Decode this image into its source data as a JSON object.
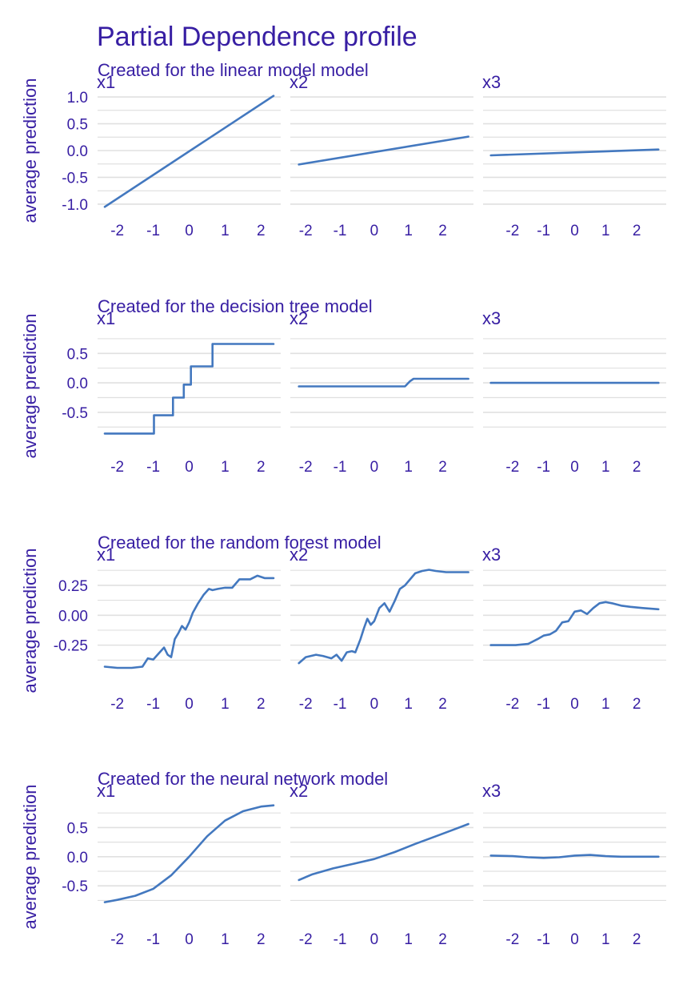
{
  "title": "Partial Dependence profile",
  "colors": {
    "text": "#371ea3",
    "line": "#4378bf",
    "grid": "#e0e0e0",
    "background": "#ffffff"
  },
  "ylabel": "average prediction",
  "chart_data": [
    {
      "type": "line",
      "subtitle": "Created for the linear model model",
      "ylim": [
        -1.12,
        1.12
      ],
      "yticks": [
        -1.0,
        -0.5,
        0.0,
        0.5,
        1.0
      ],
      "ytick_labels": [
        "-1.0",
        "-0.5",
        "0.0",
        "0.5",
        "1.0"
      ],
      "panels": [
        {
          "label": "x1",
          "xlim": [
            -2.55,
            2.55
          ],
          "xticks": [
            -2,
            -1,
            0,
            1,
            2
          ],
          "xtick_labels": [
            "-2",
            "-1",
            "0",
            "1",
            "2"
          ],
          "x": [
            -2.35,
            2.35
          ],
          "y": [
            -1.05,
            1.02
          ]
        },
        {
          "label": "x2",
          "xlim": [
            -2.45,
            2.9
          ],
          "xticks": [
            -2,
            -1,
            0,
            1,
            2
          ],
          "xtick_labels": [
            "-2",
            "-1",
            "0",
            "1",
            "2"
          ],
          "x": [
            -2.2,
            2.75
          ],
          "y": [
            -0.26,
            0.26
          ]
        },
        {
          "label": "x3",
          "xlim": [
            -2.95,
            2.95
          ],
          "xticks": [
            -2,
            -1,
            0,
            1,
            2
          ],
          "xtick_labels": [
            "-2",
            "-1",
            "0",
            "1",
            "2"
          ],
          "x": [
            -2.7,
            2.7
          ],
          "y": [
            -0.09,
            0.02
          ]
        }
      ]
    },
    {
      "type": "line",
      "subtitle": "Created for the decision tree model",
      "ylim": [
        -0.95,
        0.98
      ],
      "yticks": [
        -0.5,
        0.0,
        0.5
      ],
      "ytick_labels": [
        "-0.5",
        "0.0",
        "0.5"
      ],
      "panels": [
        {
          "label": "x1",
          "xlim": [
            -2.55,
            2.55
          ],
          "xticks": [
            -2,
            -1,
            0,
            1,
            2
          ],
          "xtick_labels": [
            "-2",
            "-1",
            "0",
            "1",
            "2"
          ],
          "x": [
            -2.35,
            -0.98,
            -0.98,
            -0.45,
            -0.45,
            -0.15,
            -0.15,
            0.05,
            0.05,
            0.65,
            0.65,
            2.35
          ],
          "y": [
            -0.86,
            -0.86,
            -0.55,
            -0.55,
            -0.25,
            -0.25,
            -0.03,
            -0.03,
            0.28,
            0.28,
            0.66,
            0.66
          ]
        },
        {
          "label": "x2",
          "xlim": [
            -2.45,
            2.9
          ],
          "xticks": [
            -2,
            -1,
            0,
            1,
            2
          ],
          "xtick_labels": [
            "-2",
            "-1",
            "0",
            "1",
            "2"
          ],
          "x": [
            -2.2,
            0.9,
            1.05,
            1.15,
            2.75
          ],
          "y": [
            -0.06,
            -0.06,
            0.03,
            0.07,
            0.07
          ]
        },
        {
          "label": "x3",
          "xlim": [
            -2.95,
            2.95
          ],
          "xticks": [
            -2,
            -1,
            0,
            1,
            2
          ],
          "xtick_labels": [
            "-2",
            "-1",
            "0",
            "1",
            "2"
          ],
          "x": [
            -2.7,
            2.7
          ],
          "y": [
            0.0,
            0.0
          ]
        }
      ]
    },
    {
      "type": "line",
      "subtitle": "Created for the random forest model",
      "ylim": [
        -0.5,
        0.45
      ],
      "yticks": [
        -0.25,
        0.0,
        0.25
      ],
      "ytick_labels": [
        "-0.25",
        "0.00",
        "0.25"
      ],
      "panels": [
        {
          "label": "x1",
          "xlim": [
            -2.55,
            2.55
          ],
          "xticks": [
            -2,
            -1,
            0,
            1,
            2
          ],
          "xtick_labels": [
            "-2",
            "-1",
            "0",
            "1",
            "2"
          ],
          "x": [
            -2.35,
            -2.0,
            -1.6,
            -1.3,
            -1.15,
            -1.0,
            -0.85,
            -0.7,
            -0.6,
            -0.5,
            -0.4,
            -0.3,
            -0.2,
            -0.1,
            0.0,
            0.1,
            0.25,
            0.4,
            0.55,
            0.65,
            0.8,
            1.0,
            1.2,
            1.4,
            1.7,
            1.9,
            2.1,
            2.35
          ],
          "y": [
            -0.43,
            -0.44,
            -0.44,
            -0.43,
            -0.36,
            -0.37,
            -0.32,
            -0.27,
            -0.33,
            -0.35,
            -0.2,
            -0.15,
            -0.09,
            -0.12,
            -0.06,
            0.02,
            0.1,
            0.17,
            0.22,
            0.21,
            0.22,
            0.23,
            0.23,
            0.3,
            0.3,
            0.33,
            0.31,
            0.31
          ]
        },
        {
          "label": "x2",
          "xlim": [
            -2.45,
            2.9
          ],
          "xticks": [
            -2,
            -1,
            0,
            1,
            2
          ],
          "xtick_labels": [
            "-2",
            "-1",
            "0",
            "1",
            "2"
          ],
          "x": [
            -2.2,
            -2.0,
            -1.7,
            -1.5,
            -1.25,
            -1.1,
            -0.95,
            -0.8,
            -0.65,
            -0.55,
            -0.4,
            -0.3,
            -0.2,
            -0.1,
            0.0,
            0.15,
            0.3,
            0.45,
            0.6,
            0.75,
            0.9,
            1.05,
            1.2,
            1.4,
            1.6,
            1.8,
            2.1,
            2.4,
            2.75
          ],
          "y": [
            -0.4,
            -0.35,
            -0.33,
            -0.34,
            -0.36,
            -0.33,
            -0.38,
            -0.31,
            -0.3,
            -0.31,
            -0.2,
            -0.11,
            -0.03,
            -0.08,
            -0.05,
            0.06,
            0.1,
            0.03,
            0.12,
            0.22,
            0.25,
            0.3,
            0.35,
            0.37,
            0.38,
            0.37,
            0.36,
            0.36,
            0.36
          ]
        },
        {
          "label": "x3",
          "xlim": [
            -2.95,
            2.95
          ],
          "xticks": [
            -2,
            -1,
            0,
            1,
            2
          ],
          "xtick_labels": [
            "-2",
            "-1",
            "0",
            "1",
            "2"
          ],
          "x": [
            -2.7,
            -2.3,
            -1.9,
            -1.5,
            -1.2,
            -1.0,
            -0.8,
            -0.6,
            -0.4,
            -0.2,
            0.0,
            0.2,
            0.4,
            0.6,
            0.8,
            1.0,
            1.2,
            1.5,
            1.8,
            2.2,
            2.7
          ],
          "y": [
            -0.25,
            -0.25,
            -0.25,
            -0.24,
            -0.2,
            -0.17,
            -0.16,
            -0.13,
            -0.06,
            -0.05,
            0.03,
            0.04,
            0.01,
            0.06,
            0.1,
            0.11,
            0.1,
            0.08,
            0.07,
            0.06,
            0.05
          ]
        }
      ]
    },
    {
      "type": "line",
      "subtitle": "Created for the neural network model",
      "ylim": [
        -0.95,
        1.0
      ],
      "yticks": [
        -0.5,
        0.0,
        0.5
      ],
      "ytick_labels": [
        "-0.5",
        "0.0",
        "0.5"
      ],
      "panels": [
        {
          "label": "x1",
          "xlim": [
            -2.55,
            2.55
          ],
          "xticks": [
            -2,
            -1,
            0,
            1,
            2
          ],
          "xtick_labels": [
            "-2",
            "-1",
            "0",
            "1",
            "2"
          ],
          "x": [
            -2.35,
            -2.0,
            -1.5,
            -1.0,
            -0.5,
            0.0,
            0.5,
            1.0,
            1.5,
            2.0,
            2.35
          ],
          "y": [
            -0.78,
            -0.74,
            -0.67,
            -0.55,
            -0.32,
            0.0,
            0.35,
            0.62,
            0.78,
            0.86,
            0.88
          ]
        },
        {
          "label": "x2",
          "xlim": [
            -2.45,
            2.9
          ],
          "xticks": [
            -2,
            -1,
            0,
            1,
            2
          ],
          "xtick_labels": [
            "-2",
            "-1",
            "0",
            "1",
            "2"
          ],
          "x": [
            -2.2,
            -1.8,
            -1.2,
            -0.6,
            0.0,
            0.6,
            1.2,
            1.8,
            2.3,
            2.75
          ],
          "y": [
            -0.4,
            -0.3,
            -0.2,
            -0.12,
            -0.04,
            0.08,
            0.22,
            0.35,
            0.46,
            0.56
          ]
        },
        {
          "label": "x3",
          "xlim": [
            -2.95,
            2.95
          ],
          "xticks": [
            -2,
            -1,
            0,
            1,
            2
          ],
          "xtick_labels": [
            "-2",
            "-1",
            "0",
            "1",
            "2"
          ],
          "x": [
            -2.7,
            -2.0,
            -1.5,
            -1.0,
            -0.5,
            0.0,
            0.5,
            1.0,
            1.5,
            2.0,
            2.7
          ],
          "y": [
            0.02,
            0.01,
            -0.01,
            -0.02,
            -0.01,
            0.02,
            0.03,
            0.01,
            0.0,
            0.0,
            0.0
          ]
        }
      ]
    }
  ]
}
